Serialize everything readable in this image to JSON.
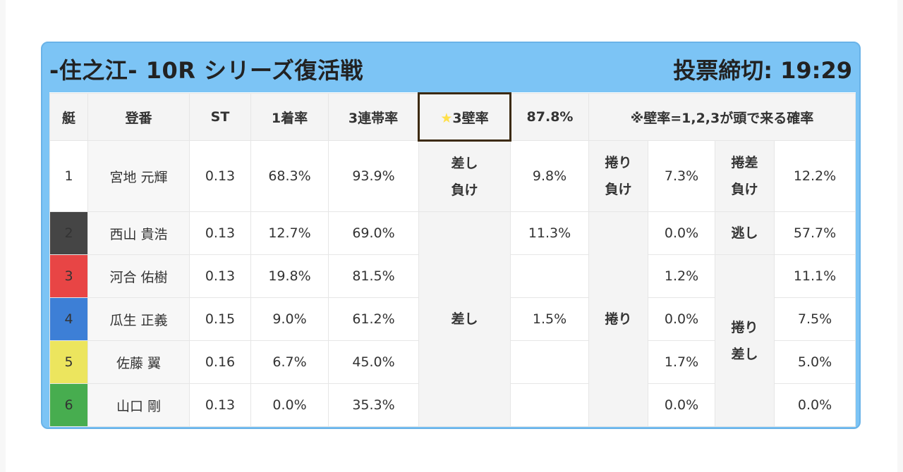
{
  "header": {
    "title": "-住之江- 10R シリーズ復活戦",
    "deadline": "投票締切: 19:29"
  },
  "table": {
    "headers": {
      "boat": "艇",
      "reg": "登番",
      "st": "ST",
      "first_rate": "1着率",
      "top3_rate": "3連帯率",
      "wall_star": "★",
      "wall_label": "3壁率",
      "wall_value": "87.8%",
      "note": "※壁率=1,2,3が頭で来る確率"
    },
    "rows": [
      {
        "boat": "1",
        "name": "宮地 元輝",
        "st": "0.13",
        "first_rate": "68.3%",
        "top3_rate": "93.9%"
      },
      {
        "boat": "2",
        "name": "西山 貴浩",
        "st": "0.13",
        "first_rate": "12.7%",
        "top3_rate": "69.0%"
      },
      {
        "boat": "3",
        "name": "河合 佑樹",
        "st": "0.13",
        "first_rate": "19.8%",
        "top3_rate": "81.5%"
      },
      {
        "boat": "4",
        "name": "瓜生 正義",
        "st": "0.15",
        "first_rate": "9.0%",
        "top3_rate": "61.2%"
      },
      {
        "boat": "5",
        "name": "佐藤 翼",
        "st": "0.16",
        "first_rate": "6.7%",
        "top3_rate": "45.0%"
      },
      {
        "boat": "6",
        "name": "山口 剛",
        "st": "0.13",
        "first_rate": "0.0%",
        "top3_rate": "35.3%"
      }
    ],
    "outcomes": {
      "sashi_make_line1": "差し",
      "sashi_make_line2": "負け",
      "sashi_make_rate": "9.8%",
      "makuri_make_line1": "捲り",
      "makuri_make_line2": "負け",
      "makuri_make_rate": "7.3%",
      "makurisashi_make_line1": "捲差",
      "makurisashi_make_line2": "負け",
      "makurisashi_make_rate": "12.2%",
      "sashi": "差し",
      "sashi_rates": [
        "11.3%",
        "",
        "1.5%",
        "",
        ""
      ],
      "makuri": "捲り",
      "makuri_rates": [
        "0.0%",
        "1.2%",
        "0.0%",
        "1.7%",
        "0.0%"
      ],
      "nige": "逃し",
      "nige_rate": "57.7%",
      "makurisashi_line1": "捲り",
      "makurisashi_line2": "差し",
      "makurisashi_rates": [
        "11.1%",
        "7.5%",
        "5.0%",
        "0.0%"
      ]
    }
  }
}
